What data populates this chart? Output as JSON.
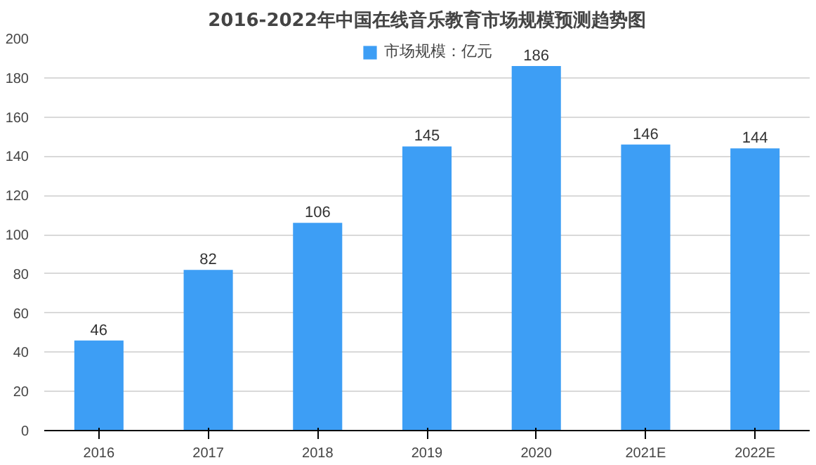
{
  "chart_data": {
    "type": "bar",
    "title": "2016-2022年中国在线音乐教育市场规模预测趋势图",
    "categories": [
      "2016",
      "2017",
      "2018",
      "2019",
      "2020",
      "2021E",
      "2022E"
    ],
    "series": [
      {
        "name": "市场规模：亿元",
        "color": "#3d9ef5",
        "values": [
          46,
          82,
          106,
          145,
          186,
          146,
          144
        ]
      }
    ],
    "ylim": [
      0,
      200
    ],
    "yticks": [
      0,
      20,
      40,
      60,
      80,
      100,
      120,
      140,
      160,
      180,
      200
    ],
    "grid": "y",
    "legend": "top",
    "data_labels": true
  }
}
